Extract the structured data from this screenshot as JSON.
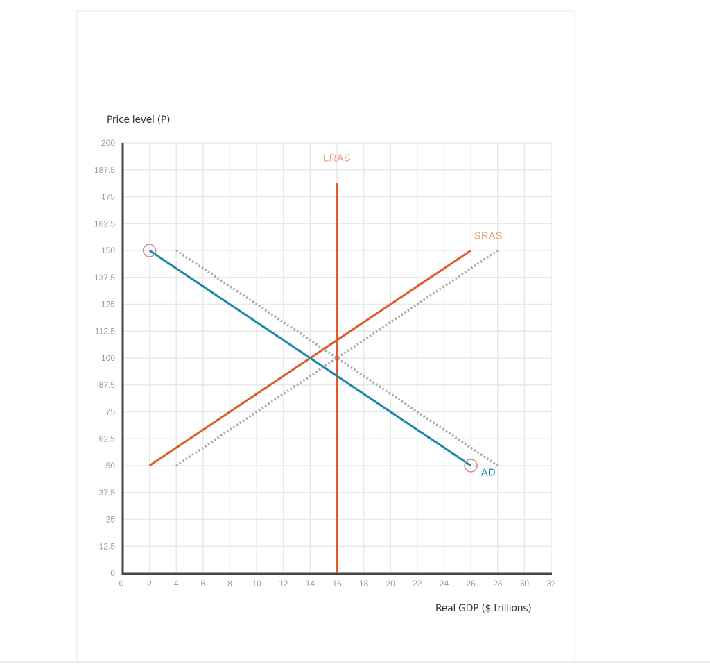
{
  "chart_data": {
    "type": "line",
    "title": "",
    "xlabel": "Real GDP ($ trillions)",
    "ylabel": "Price level (P)",
    "xlim": [
      0,
      32
    ],
    "ylim": [
      0,
      200
    ],
    "grid": true,
    "x_ticks": [
      "0",
      "2",
      "4",
      "6",
      "8",
      "10",
      "12",
      "14",
      "16",
      "18",
      "20",
      "22",
      "24",
      "26",
      "28",
      "30",
      "32"
    ],
    "y_ticks": [
      "0",
      "12.5",
      "25",
      "37.5",
      "50",
      "62.5",
      "75",
      "87.5",
      "100",
      "112.5",
      "125",
      "137.5",
      "150",
      "162.5",
      "175",
      "187.5",
      "200"
    ],
    "series": [
      {
        "name": "LRAS",
        "style": "solid",
        "color": "#e05a28",
        "label_color": "#f0a07e",
        "points": [
          [
            16,
            0
          ],
          [
            16,
            181.25
          ]
        ]
      },
      {
        "name": "SRAS",
        "style": "solid",
        "color": "#e05a28",
        "label_color": "#f0a07e",
        "points": [
          [
            2,
            50
          ],
          [
            26,
            150
          ]
        ]
      },
      {
        "name": "SRAS (original)",
        "style": "dotted",
        "color": "#a8a8a8",
        "points": [
          [
            4,
            50
          ],
          [
            28,
            150
          ]
        ]
      },
      {
        "name": "AD",
        "style": "solid",
        "color": "#1a85ad",
        "label_color": "#1a85ad",
        "points": [
          [
            2,
            150
          ],
          [
            26,
            50
          ]
        ],
        "handles": [
          [
            2,
            150
          ],
          [
            26,
            50
          ]
        ]
      },
      {
        "name": "AD (original)",
        "style": "dotted",
        "color": "#a8a8a8",
        "points": [
          [
            4,
            150
          ],
          [
            28,
            50
          ]
        ]
      }
    ],
    "annotations": [
      {
        "text": "LRAS",
        "x": 16,
        "y": 193
      },
      {
        "text": "SRAS",
        "x": 27.3,
        "y": 157
      },
      {
        "text": "AD",
        "x": 27.3,
        "y": 47
      }
    ]
  },
  "labels": {
    "y_axis_title": "Price level (P)",
    "x_axis_title": "Real GDP ($ trillions)",
    "lras": "LRAS",
    "sras": "SRAS",
    "ad": "AD"
  }
}
